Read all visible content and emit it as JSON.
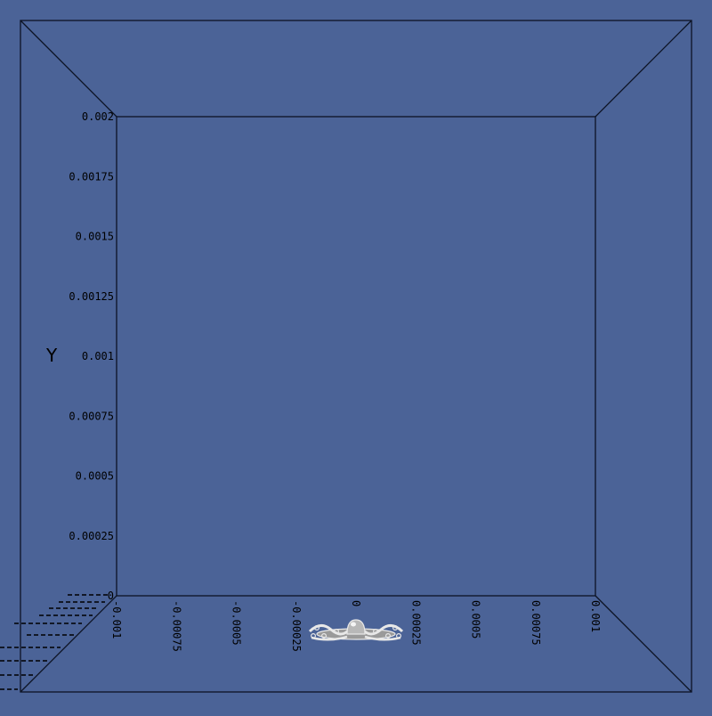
{
  "chart_data": {
    "type": "scatter",
    "title": "",
    "background": "#4b6397",
    "line_color": "#0d1324",
    "y_axis": {
      "label": "Y",
      "range": [
        0,
        0.002
      ],
      "ticks": [
        {
          "value": 0,
          "label": "0"
        },
        {
          "value": 0.00025,
          "label": "0.00025"
        },
        {
          "value": 0.0005,
          "label": "0.0005"
        },
        {
          "value": 0.00075,
          "label": "0.00075"
        },
        {
          "value": 0.001,
          "label": "0.001"
        },
        {
          "value": 0.00125,
          "label": "0.00125"
        },
        {
          "value": 0.0015,
          "label": "0.0015"
        },
        {
          "value": 0.00175,
          "label": "0.00175"
        },
        {
          "value": 0.002,
          "label": "0.002"
        }
      ]
    },
    "x_axis": {
      "label": "",
      "range": [
        -0.001,
        0.001
      ],
      "ticks": [
        {
          "value": -0.001,
          "label": "-0.001"
        },
        {
          "value": -0.00075,
          "label": "-0.00075"
        },
        {
          "value": -0.0005,
          "label": "-0.0005"
        },
        {
          "value": -0.00025,
          "label": "-0.00025"
        },
        {
          "value": 0,
          "label": "0"
        },
        {
          "value": 0.00025,
          "label": "0.00025"
        },
        {
          "value": 0.0005,
          "label": "0.0005"
        },
        {
          "value": 0.00075,
          "label": "0.00075"
        },
        {
          "value": 0.001,
          "label": "0.001"
        }
      ]
    },
    "object": {
      "description": "",
      "x_center": 0,
      "y_base": 0,
      "color": "#e8e8e8"
    }
  }
}
